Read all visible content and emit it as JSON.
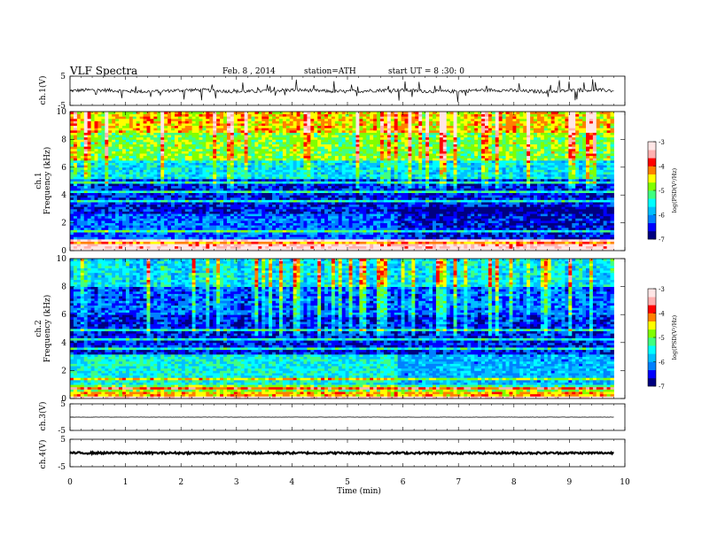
{
  "header": {
    "title": "VLF Spectra",
    "date": "Feb. 8 , 2014",
    "station": "station=ATH",
    "start": "start UT =  8 :30: 0"
  },
  "colorbar": {
    "label": "log(PSD(V²/Hz)",
    "ticks": [
      "-3",
      "-4",
      "-5",
      "-6",
      "-7"
    ],
    "range": [
      -7,
      -3
    ],
    "colors": [
      "#000080",
      "#0000ff",
      "#0080ff",
      "#00c0ff",
      "#00ffff",
      "#40ff80",
      "#80ff00",
      "#ffff00",
      "#ff8000",
      "#ff0000",
      "#ffb0b0",
      "#ffe6e6"
    ]
  },
  "chart_data": [
    {
      "type": "line",
      "panel": "ch1",
      "ylabel": "ch.1(V)",
      "ylim": [
        -5,
        5
      ],
      "yticks": [
        "5",
        "-5"
      ],
      "xlim": [
        0,
        9.8
      ],
      "baseline": 0,
      "noise_amplitude": 0.6,
      "spike_amplitude": 2.2,
      "color": "#000000"
    },
    {
      "type": "heatmap",
      "panel": "ch1_spectrogram",
      "ylabel": "ch.1 Frequency (kHz)",
      "ylim": [
        0,
        10
      ],
      "yticks": [
        "0",
        "2",
        "4",
        "6",
        "8",
        "10"
      ],
      "xlim": [
        0,
        9.8
      ],
      "zlim": [
        -7,
        -3
      ],
      "band_levels": [
        {
          "f": [
            0.0,
            0.5
          ],
          "v": -3.3
        },
        {
          "f": [
            0.5,
            0.9
          ],
          "v": -4.2
        },
        {
          "f": [
            0.9,
            2.6
          ],
          "v": -6.2
        },
        {
          "f": [
            2.6,
            5.2
          ],
          "v": -6.5
        },
        {
          "f": [
            5.2,
            6.5
          ],
          "v": -5.6
        },
        {
          "f": [
            6.5,
            8.5
          ],
          "v": -4.9
        },
        {
          "f": [
            8.5,
            10.0
          ],
          "v": -4.4
        }
      ],
      "transition_at_min": 5.9
    },
    {
      "type": "heatmap",
      "panel": "ch2_spectrogram",
      "ylabel": "ch.2 Frequency (kHz)",
      "ylim": [
        0,
        10
      ],
      "yticks": [
        "0",
        "2",
        "4",
        "6",
        "8",
        "10"
      ],
      "xlim": [
        0,
        9.8
      ],
      "zlim": [
        -7,
        -3
      ],
      "band_levels": [
        {
          "f": [
            0.0,
            0.5
          ],
          "v": -4.3
        },
        {
          "f": [
            0.5,
            1.0
          ],
          "v": -4.9
        },
        {
          "f": [
            1.0,
            3.2
          ],
          "v": -5.5
        },
        {
          "f": [
            3.2,
            6.0
          ],
          "v": -6.5
        },
        {
          "f": [
            6.0,
            8.0
          ],
          "v": -6.2
        },
        {
          "f": [
            8.0,
            10.0
          ],
          "v": -5.6
        }
      ],
      "transition_at_min": 5.9
    },
    {
      "type": "line",
      "panel": "ch3",
      "ylabel": "ch.3(V)",
      "ylim": [
        -5,
        5
      ],
      "yticks": [
        "5",
        "-5"
      ],
      "xlim": [
        0,
        9.8
      ],
      "baseline": 0,
      "noise_amplitude": 0.05,
      "color": "#000000"
    },
    {
      "type": "line",
      "panel": "ch4",
      "ylabel": "ch.4(V)",
      "ylim": [
        -5,
        5
      ],
      "yticks": [
        "5",
        "-5"
      ],
      "xlim": [
        0,
        9.8
      ],
      "baseline": 0,
      "noise_amplitude": 0.35,
      "color": "#000000"
    }
  ],
  "xaxis": {
    "label": "Time  (min)",
    "range": [
      0,
      10
    ],
    "ticks": [
      "0",
      "1",
      "2",
      "3",
      "4",
      "5",
      "6",
      "7",
      "8",
      "9",
      "10"
    ]
  }
}
